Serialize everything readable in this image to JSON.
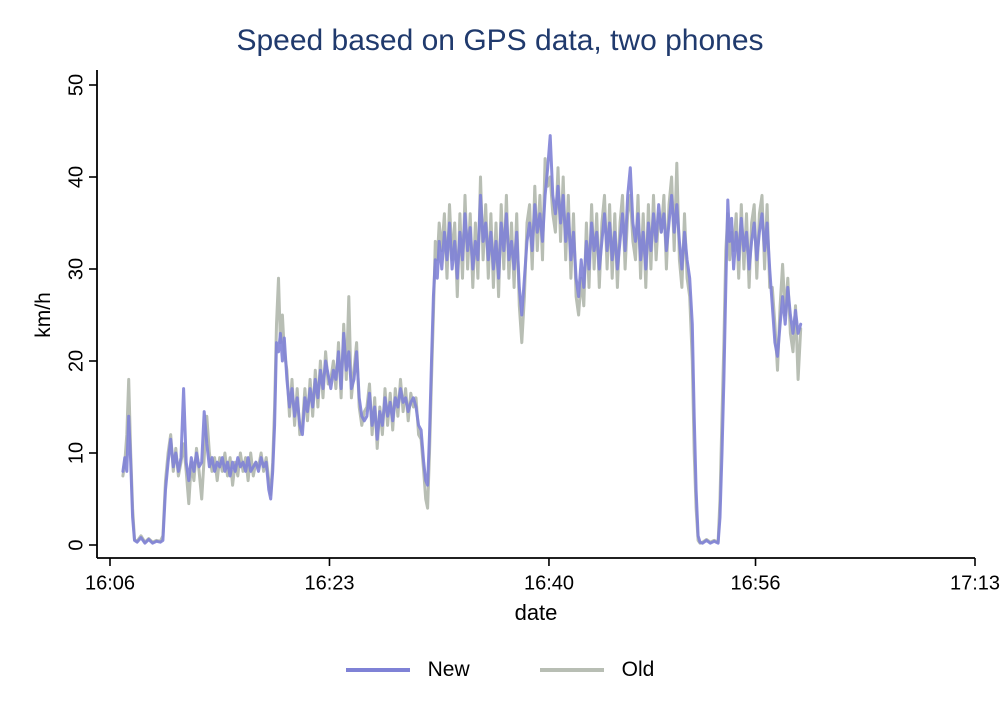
{
  "chart_data": {
    "type": "line",
    "title": "Speed based on GPS data, two phones",
    "title_color": "#203a6d",
    "xlabel": "date",
    "ylabel": "km/h",
    "grid": false,
    "legend_position": "bottom",
    "ylim": [
      0,
      50
    ],
    "y_tick_values": [
      0,
      10,
      20,
      30,
      40,
      50
    ],
    "y_tick_labels": [
      "0",
      "10",
      "20",
      "30",
      "40",
      "50"
    ],
    "x_axis": {
      "unit": "time of day (HH:MM)",
      "range_minutes_after_1606": [
        0,
        67
      ],
      "tick_values_minutes": [
        0,
        17,
        34,
        50,
        67
      ],
      "tick_labels": [
        "16:06",
        "16:23",
        "16:40",
        "16:56",
        "17:13"
      ]
    },
    "points_encoding": "each segment: t0 = start time in minutes after 16:06, dt = step in minutes, v = speed values in km/h",
    "series": [
      {
        "name": "New",
        "color": "#7f82d6",
        "opacity": 0.9,
        "segments": [
          {
            "t0": 1.0,
            "dt": 0.15,
            "v": [
              8,
              9.5,
              8,
              14,
              9,
              3,
              0.5
            ]
          },
          {
            "t0": 2.1,
            "dt": 0.3,
            "v": [
              0.3,
              0.8,
              0.2,
              0.6,
              0.2,
              0.4,
              0.3
            ]
          },
          {
            "t0": 4.1,
            "dt": 0.2,
            "v": [
              0.5,
              6,
              9,
              11.5,
              8.5,
              10,
              8,
              9.5,
              17,
              9,
              7,
              9.5,
              8,
              10,
              8.5,
              9,
              14.5,
              11,
              8.5,
              9.5,
              8,
              9,
              8.5,
              9.5,
              8,
              9,
              7.5,
              9,
              8,
              9.5,
              8.5,
              9,
              8,
              9.5,
              8,
              8.5,
              9,
              8,
              9.5,
              8.5,
              9
            ]
          },
          {
            "t0": 12.3,
            "dt": 0.15,
            "v": [
              6,
              5,
              8,
              13,
              22,
              21,
              23,
              20,
              22.5
            ]
          },
          {
            "t0": 13.7,
            "dt": 0.2,
            "v": [
              18,
              15,
              17,
              14,
              16,
              13,
              12,
              16,
              14.5,
              17,
              15,
              18,
              16,
              19,
              17,
              20,
              18.5,
              17,
              19,
              18,
              21,
              17,
              23,
              19,
              21,
              17,
              18,
              21,
              16,
              14,
              13.5
            ]
          },
          {
            "t0": 19.9,
            "dt": 0.2,
            "v": [
              14,
              16.5,
              13,
              15,
              11.5,
              14.5,
              13,
              16,
              14,
              15.5,
              13.5,
              16,
              15,
              17,
              15.5,
              16,
              14.5,
              15.5,
              16,
              15,
              13,
              12.5
            ]
          },
          {
            "t0": 24.3,
            "dt": 0.15,
            "v": [
              9,
              7,
              6.5,
              12,
              20,
              27,
              31,
              29,
              33
            ]
          },
          {
            "t0": 25.7,
            "dt": 0.2,
            "v": [
              30,
              34,
              31,
              35,
              30,
              33,
              29,
              34,
              31,
              36,
              32,
              34.5,
              30,
              33,
              31,
              38,
              33,
              35,
              31,
              34,
              30,
              33,
              29,
              35,
              32,
              36,
              31,
              33,
              30,
              34,
              28,
              25,
              29,
              33,
              35,
              32,
              37,
              34,
              36,
              33,
              38,
              41,
              44.5,
              38,
              36,
              39,
              35,
              38,
              33,
              36,
              31,
              34,
              29,
              27,
              31,
              28,
              33,
              30,
              35,
              32,
              34,
              30,
              33,
              36,
              32,
              35,
              31,
              34,
              30,
              33,
              36,
              32,
              38,
              41,
              35,
              33,
              36,
              31,
              34,
              30,
              35,
              32,
              36,
              33,
              37,
              34,
              36,
              32,
              35,
              38,
              34,
              37,
              33,
              30,
              34,
              31,
              29
            ]
          },
          {
            "t0": 45.1,
            "dt": 0.15,
            "v": [
              24,
              14,
              6,
              1,
              0.3
            ]
          },
          {
            "t0": 45.9,
            "dt": 0.3,
            "v": [
              0.2,
              0.5,
              0.2,
              0.4,
              0.2
            ]
          },
          {
            "t0": 47.25,
            "dt": 0.15,
            "v": [
              3,
              10,
              18,
              28,
              37.5,
              33,
              35.5
            ]
          },
          {
            "t0": 48.3,
            "dt": 0.2,
            "v": [
              30,
              34,
              31,
              35.5,
              32,
              34,
              30,
              33,
              35,
              31,
              34,
              36,
              32,
              35,
              30
            ]
          },
          {
            "t0": 51.3,
            "dt": 0.2,
            "v": [
              26,
              22,
              20.5,
              24,
              27,
              24,
              28,
              25,
              23,
              25.5,
              23,
              24
            ]
          }
        ]
      },
      {
        "name": "Old",
        "color": "#b8beb4",
        "opacity": 1,
        "segments": [
          {
            "t0": 1.0,
            "dt": 0.15,
            "v": [
              7.5,
              9,
              12,
              18,
              10,
              4,
              0.6
            ]
          },
          {
            "t0": 2.1,
            "dt": 0.3,
            "v": [
              0.4,
              1,
              0.3,
              0.7,
              0.3,
              0.5,
              0.4
            ]
          },
          {
            "t0": 4.1,
            "dt": 0.2,
            "v": [
              1,
              7,
              10,
              12,
              8,
              10.5,
              7.5,
              9,
              11,
              8,
              4.5,
              9,
              7,
              10.5,
              8,
              5,
              9.5,
              14,
              10,
              8,
              9.5,
              7,
              9.5,
              8,
              10,
              7.5,
              9.5,
              6.5,
              9,
              7.5,
              10,
              8,
              9.5,
              7,
              10,
              7.5,
              9,
              8.5,
              10,
              8,
              9.5
            ]
          },
          {
            "t0": 12.3,
            "dt": 0.15,
            "v": [
              7,
              5.5,
              9,
              15,
              24,
              29,
              22,
              25,
              21
            ]
          },
          {
            "t0": 13.7,
            "dt": 0.2,
            "v": [
              19,
              14,
              18,
              13,
              17,
              12,
              13,
              17,
              13.5,
              18,
              14,
              19,
              15,
              20,
              16,
              21,
              17.5,
              18,
              20,
              17,
              22,
              16,
              24,
              18,
              27,
              16,
              19,
              22,
              15,
              13,
              14.5
            ]
          },
          {
            "t0": 19.9,
            "dt": 0.2,
            "v": [
              15,
              17.5,
              12,
              16,
              10.5,
              15,
              12,
              17,
              13,
              16.5,
              12.5,
              17,
              14,
              18,
              14.5,
              17,
              13.5,
              16.5,
              15,
              16,
              12,
              11.5
            ]
          },
          {
            "t0": 24.3,
            "dt": 0.15,
            "v": [
              8,
              5,
              4,
              10,
              18,
              25,
              33,
              31,
              35
            ]
          },
          {
            "t0": 25.7,
            "dt": 0.2,
            "v": [
              32,
              36,
              29,
              37,
              31,
              35,
              27,
              36,
              29,
              38,
              30,
              36,
              28,
              35,
              29,
              40,
              31,
              37,
              29,
              36,
              28,
              35,
              27,
              37,
              30,
              38,
              29,
              35,
              28,
              36,
              26,
              22,
              27,
              35,
              37,
              30,
              39,
              32,
              38,
              31,
              42,
              39,
              40,
              36,
              34,
              41,
              33,
              40,
              31,
              38,
              29,
              36,
              27,
              25,
              29,
              26,
              35,
              28,
              37,
              30,
              36,
              28,
              35,
              38,
              30,
              37,
              29,
              36,
              28,
              35,
              38,
              30,
              36,
              38,
              33,
              31,
              38,
              29,
              36,
              28,
              37,
              30,
              38,
              31,
              36,
              34,
              38,
              30,
              37,
              40,
              32,
              41.5,
              31,
              28,
              36,
              29,
              27
            ]
          },
          {
            "t0": 45.1,
            "dt": 0.15,
            "v": [
              20,
              10,
              4,
              0.5,
              0.2
            ]
          },
          {
            "t0": 45.9,
            "dt": 0.3,
            "v": [
              0.3,
              0.6,
              0.3,
              0.5,
              0.3
            ]
          },
          {
            "t0": 47.25,
            "dt": 0.15,
            "v": [
              5,
              14,
              22,
              32,
              36,
              31,
              34
            ]
          },
          {
            "t0": 48.3,
            "dt": 0.2,
            "v": [
              32,
              36,
              29,
              37,
              30,
              36,
              28,
              35,
              37,
              29,
              36,
              38,
              30,
              37,
              28
            ]
          },
          {
            "t0": 51.3,
            "dt": 0.2,
            "v": [
              28,
              24,
              19,
              26,
              30.5,
              25,
              29,
              23,
              21,
              26,
              18,
              23.5
            ]
          }
        ]
      }
    ]
  }
}
